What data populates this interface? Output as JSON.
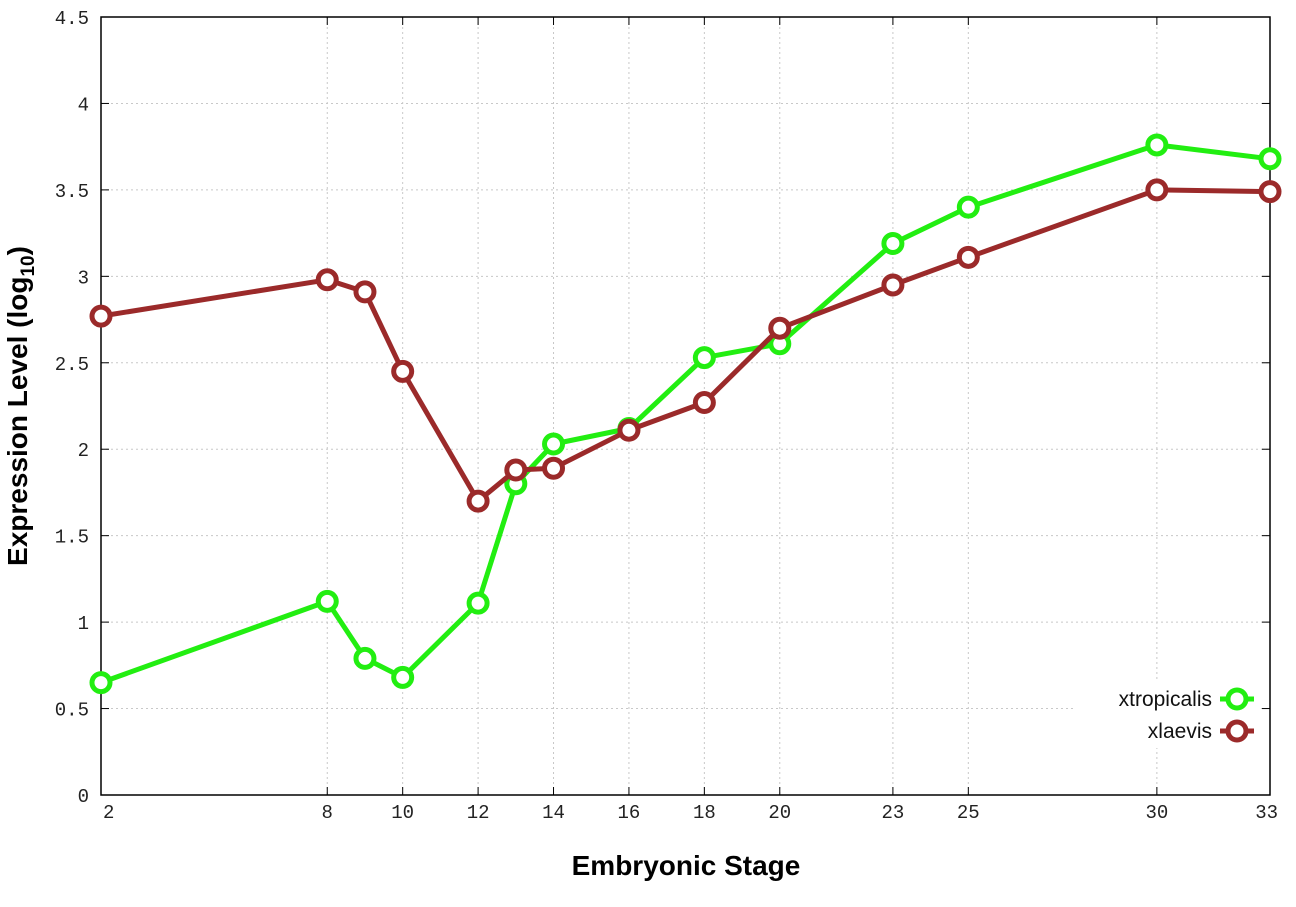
{
  "chart_data": {
    "type": "line",
    "xlabel": "Embryonic Stage",
    "ylabel": {
      "prefix": "Expression Level (log",
      "subscript": "10",
      "suffix": ")"
    },
    "x_ticks": [
      2,
      8,
      10,
      12,
      14,
      16,
      18,
      20,
      23,
      25,
      30,
      33
    ],
    "y_ticks": [
      "0",
      "0.5",
      "1",
      "1.5",
      "2",
      "2.5",
      "3",
      "3.5",
      "4",
      "4.5"
    ],
    "xlim": [
      2,
      33
    ],
    "ylim": [
      0,
      4.5
    ],
    "grid": true,
    "legend_position": "bottom-right",
    "x": [
      2,
      8,
      9,
      10,
      12,
      13,
      14,
      16,
      18,
      20,
      23,
      25,
      30,
      33
    ],
    "series": [
      {
        "name": "xtropicalis",
        "color": "#22ee11",
        "values": [
          0.65,
          1.12,
          0.79,
          0.68,
          1.11,
          1.8,
          2.03,
          2.12,
          2.53,
          2.61,
          3.19,
          3.4,
          3.76,
          3.68
        ]
      },
      {
        "name": "xlaevis",
        "color": "#9b2a2a",
        "values": [
          2.77,
          2.98,
          2.91,
          2.45,
          1.7,
          1.88,
          1.89,
          2.11,
          2.27,
          2.7,
          2.95,
          3.11,
          3.5,
          3.49
        ]
      }
    ]
  }
}
